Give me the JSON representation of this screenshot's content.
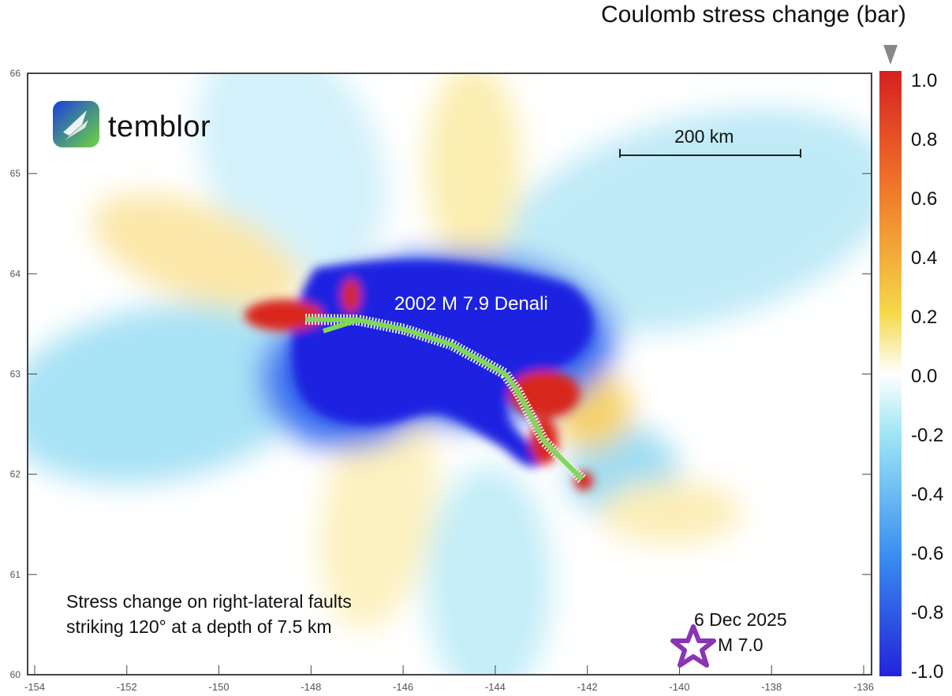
{
  "colorbar": {
    "title": "Coulomb stress change (bar)",
    "ticks": [
      "1.0",
      "0.8",
      "0.6",
      "0.4",
      "0.2",
      "0.0",
      "-0.2",
      "-0.4",
      "-0.6",
      "-0.8",
      "-1.0"
    ],
    "colors": [
      "#2a2ae0",
      "#3aa0f0",
      "#9fe6f5",
      "#ffffff",
      "#f7e080",
      "#f08a30",
      "#d62a20"
    ]
  },
  "axes": {
    "x_ticks": [
      "-154",
      "-152",
      "-150",
      "-148",
      "-146",
      "-144",
      "-142",
      "-140",
      "-138",
      "-136"
    ],
    "y_ticks": [
      "66",
      "65",
      "64",
      "63",
      "62",
      "61",
      "60"
    ]
  },
  "logo": {
    "text": "temblor"
  },
  "scale_bar": {
    "label": "200 km"
  },
  "labels": {
    "rupture": "2002 M 7.9 Denali",
    "note_line1": "Stress change on right-lateral faults",
    "note_line2": "striking 120° at a depth of 7.5 km",
    "quake_date": "6 Dec 2025",
    "quake_mag": "M 7.0"
  },
  "markers": {
    "epicenter_icon": "star-icon",
    "epicenter_color": "#8a35b5",
    "fault_color": "#7ed957"
  }
}
